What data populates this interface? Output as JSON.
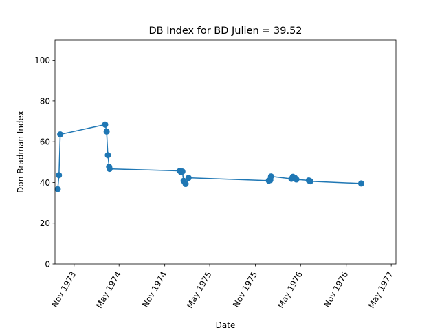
{
  "chart_data": {
    "type": "line",
    "title": "DB Index for BD Julien = 39.52",
    "xlabel": "Date",
    "ylabel": "Don Bradman Index",
    "ylim": [
      0,
      110
    ],
    "xlim": [
      "1973-08-16",
      "1977-05-20"
    ],
    "yticks": [
      0,
      20,
      40,
      60,
      80,
      100
    ],
    "xticks": [
      {
        "date": "1973-11-01",
        "label": "Nov 1973"
      },
      {
        "date": "1974-05-01",
        "label": "May 1974"
      },
      {
        "date": "1974-11-01",
        "label": "Nov 1974"
      },
      {
        "date": "1975-05-01",
        "label": "May 1975"
      },
      {
        "date": "1975-11-01",
        "label": "Nov 1975"
      },
      {
        "date": "1976-05-01",
        "label": "May 1976"
      },
      {
        "date": "1976-11-01",
        "label": "Nov 1976"
      },
      {
        "date": "1977-05-01",
        "label": "May 1977"
      }
    ],
    "grid": false,
    "color": "#1f77b4",
    "series": [
      {
        "x": [
          "1973-08-27",
          "1973-09-01",
          "1973-09-06",
          "1974-03-06",
          "1974-03-12",
          "1974-03-17",
          "1974-03-22",
          "1974-03-24",
          "1975-01-01",
          "1975-01-06",
          "1975-01-11",
          "1975-01-16",
          "1975-01-24",
          "1975-02-05",
          "1975-12-25",
          "1975-12-31",
          "1976-01-03",
          "1976-03-25",
          "1976-03-31",
          "1976-04-08",
          "1976-04-14",
          "1976-06-03",
          "1976-06-09",
          "1976-12-31"
        ],
        "y": [
          36.7,
          43.6,
          63.6,
          68.4,
          65.0,
          53.4,
          47.7,
          46.7,
          45.7,
          45.0,
          45.4,
          40.8,
          39.3,
          42.3,
          40.9,
          41.2,
          43.0,
          41.8,
          42.8,
          42.3,
          41.5,
          41.0,
          40.6,
          39.5
        ]
      }
    ]
  }
}
